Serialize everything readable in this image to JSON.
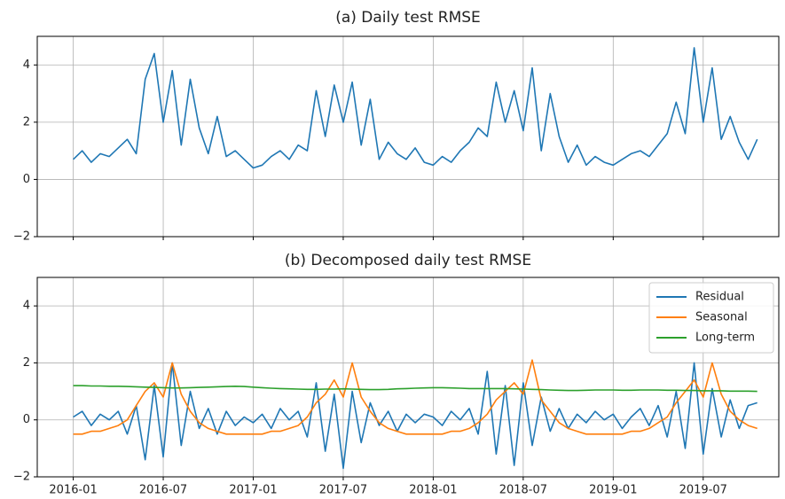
{
  "chart_data": [
    {
      "type": "line",
      "title": "(a) Daily test RMSE",
      "x": [
        2016.0,
        2016.05,
        2016.1,
        2016.15,
        2016.2,
        2016.25,
        2016.3,
        2016.35,
        2016.4,
        2016.45,
        2016.5,
        2016.55,
        2016.6,
        2016.65,
        2016.7,
        2016.75,
        2016.8,
        2016.85,
        2016.9,
        2016.95,
        2017.0,
        2017.05,
        2017.1,
        2017.15,
        2017.2,
        2017.25,
        2017.3,
        2017.35,
        2017.4,
        2017.45,
        2017.5,
        2017.55,
        2017.6,
        2017.65,
        2017.7,
        2017.75,
        2017.8,
        2017.85,
        2017.9,
        2017.95,
        2018.0,
        2018.05,
        2018.1,
        2018.15,
        2018.2,
        2018.25,
        2018.3,
        2018.35,
        2018.4,
        2018.45,
        2018.5,
        2018.55,
        2018.6,
        2018.65,
        2018.7,
        2018.75,
        2018.8,
        2018.85,
        2018.9,
        2018.95,
        2019.0,
        2019.05,
        2019.1,
        2019.15,
        2019.2,
        2019.25,
        2019.3,
        2019.35,
        2019.4,
        2019.45,
        2019.5,
        2019.55,
        2019.6,
        2019.65,
        2019.7,
        2019.75,
        2019.8
      ],
      "series": [
        {
          "color": "#1f77b4",
          "values": [
            0.7,
            1.0,
            0.6,
            0.9,
            0.8,
            1.1,
            1.4,
            0.9,
            3.5,
            4.4,
            2.0,
            3.8,
            1.2,
            3.5,
            1.8,
            0.9,
            2.2,
            0.8,
            1.0,
            0.7,
            0.4,
            0.5,
            0.8,
            1.0,
            0.7,
            1.2,
            1.0,
            3.1,
            1.5,
            3.3,
            2.0,
            3.4,
            1.2,
            2.8,
            0.7,
            1.3,
            0.9,
            0.7,
            1.1,
            0.6,
            0.5,
            0.8,
            0.6,
            1.0,
            1.3,
            1.8,
            1.5,
            3.4,
            2.0,
            3.1,
            1.7,
            3.9,
            1.0,
            3.0,
            1.5,
            0.6,
            1.2,
            0.5,
            0.8,
            0.6,
            0.5,
            0.7,
            0.9,
            1.0,
            0.8,
            1.2,
            1.6,
            2.7,
            1.6,
            4.6,
            2.0,
            3.9,
            1.4,
            2.2,
            1.3,
            0.7,
            1.4
          ]
        }
      ],
      "xlim": [
        2015.8,
        2019.92
      ],
      "ylim": [
        -2,
        5
      ],
      "yticks": [
        {
          "value": -2,
          "label": "−2"
        },
        0,
        2,
        4
      ],
      "grid": true
    },
    {
      "type": "line",
      "title": "(b) Decomposed daily test RMSE",
      "x": [
        2016.0,
        2016.05,
        2016.1,
        2016.15,
        2016.2,
        2016.25,
        2016.3,
        2016.35,
        2016.4,
        2016.45,
        2016.5,
        2016.55,
        2016.6,
        2016.65,
        2016.7,
        2016.75,
        2016.8,
        2016.85,
        2016.9,
        2016.95,
        2017.0,
        2017.05,
        2017.1,
        2017.15,
        2017.2,
        2017.25,
        2017.3,
        2017.35,
        2017.4,
        2017.45,
        2017.5,
        2017.55,
        2017.6,
        2017.65,
        2017.7,
        2017.75,
        2017.8,
        2017.85,
        2017.9,
        2017.95,
        2018.0,
        2018.05,
        2018.1,
        2018.15,
        2018.2,
        2018.25,
        2018.3,
        2018.35,
        2018.4,
        2018.45,
        2018.5,
        2018.55,
        2018.6,
        2018.65,
        2018.7,
        2018.75,
        2018.8,
        2018.85,
        2018.9,
        2018.95,
        2019.0,
        2019.05,
        2019.1,
        2019.15,
        2019.2,
        2019.25,
        2019.3,
        2019.35,
        2019.4,
        2019.45,
        2019.5,
        2019.55,
        2019.6,
        2019.65,
        2019.7,
        2019.75,
        2019.8
      ],
      "series": [
        {
          "name": "Residual",
          "color": "#1f77b4",
          "values": [
            0.1,
            0.3,
            -0.2,
            0.2,
            0.0,
            0.3,
            -0.5,
            0.5,
            -1.4,
            1.2,
            -1.3,
            2.0,
            -0.9,
            1.0,
            -0.3,
            0.4,
            -0.5,
            0.3,
            -0.2,
            0.1,
            -0.1,
            0.2,
            -0.3,
            0.4,
            0.0,
            0.3,
            -0.6,
            1.3,
            -1.1,
            0.9,
            -1.7,
            1.0,
            -0.8,
            0.6,
            -0.2,
            0.3,
            -0.4,
            0.2,
            -0.1,
            0.2,
            0.1,
            -0.2,
            0.3,
            0.0,
            0.4,
            -0.5,
            1.7,
            -1.2,
            1.2,
            -1.6,
            1.3,
            -0.9,
            0.8,
            -0.4,
            0.4,
            -0.3,
            0.2,
            -0.1,
            0.3,
            0.0,
            0.2,
            -0.3,
            0.1,
            0.4,
            -0.2,
            0.5,
            -0.6,
            1.0,
            -1.0,
            2.0,
            -1.2,
            1.1,
            -0.6,
            0.7,
            -0.3,
            0.5,
            0.6
          ]
        },
        {
          "name": "Seasonal",
          "color": "#ff7f0e",
          "values": [
            -0.5,
            -0.5,
            -0.4,
            -0.4,
            -0.3,
            -0.2,
            0.0,
            0.5,
            1.0,
            1.3,
            0.8,
            2.0,
            0.9,
            0.3,
            -0.1,
            -0.3,
            -0.4,
            -0.5,
            -0.5,
            -0.5,
            -0.5,
            -0.5,
            -0.4,
            -0.4,
            -0.3,
            -0.2,
            0.1,
            0.6,
            0.9,
            1.4,
            0.8,
            2.0,
            0.8,
            0.3,
            -0.1,
            -0.3,
            -0.4,
            -0.5,
            -0.5,
            -0.5,
            -0.5,
            -0.5,
            -0.4,
            -0.4,
            -0.3,
            -0.1,
            0.2,
            0.7,
            1.0,
            1.3,
            0.9,
            2.1,
            0.7,
            0.3,
            -0.1,
            -0.3,
            -0.4,
            -0.5,
            -0.5,
            -0.5,
            -0.5,
            -0.5,
            -0.4,
            -0.4,
            -0.3,
            -0.1,
            0.1,
            0.6,
            1.0,
            1.4,
            0.8,
            2.0,
            0.9,
            0.3,
            0.0,
            -0.2,
            -0.3
          ]
        },
        {
          "name": "Long-term",
          "color": "#2ca02c",
          "values": [
            1.2,
            1.2,
            1.19,
            1.19,
            1.18,
            1.18,
            1.17,
            1.16,
            1.15,
            1.14,
            1.13,
            1.12,
            1.12,
            1.13,
            1.14,
            1.15,
            1.16,
            1.17,
            1.18,
            1.17,
            1.15,
            1.13,
            1.11,
            1.1,
            1.09,
            1.08,
            1.07,
            1.07,
            1.08,
            1.08,
            1.09,
            1.08,
            1.07,
            1.06,
            1.06,
            1.07,
            1.09,
            1.1,
            1.11,
            1.12,
            1.13,
            1.13,
            1.12,
            1.11,
            1.1,
            1.1,
            1.1,
            1.1,
            1.1,
            1.09,
            1.08,
            1.07,
            1.06,
            1.05,
            1.04,
            1.03,
            1.03,
            1.04,
            1.05,
            1.05,
            1.05,
            1.04,
            1.04,
            1.05,
            1.05,
            1.05,
            1.04,
            1.04,
            1.03,
            1.03,
            1.02,
            1.02,
            1.02,
            1.01,
            1.01,
            1.01,
            1.0
          ]
        }
      ],
      "xlim": [
        2015.8,
        2019.92
      ],
      "ylim": [
        -2,
        5
      ],
      "xticks": [
        {
          "value": 2016.0,
          "label": "2016-01"
        },
        {
          "value": 2016.5,
          "label": "2016-07"
        },
        {
          "value": 2017.0,
          "label": "2017-01"
        },
        {
          "value": 2017.5,
          "label": "2017-07"
        },
        {
          "value": 2018.0,
          "label": "2018-01"
        },
        {
          "value": 2018.5,
          "label": "2018-07"
        },
        {
          "value": 2019.0,
          "label": "2019-01"
        },
        {
          "value": 2019.5,
          "label": "2019-07"
        }
      ],
      "yticks": [
        {
          "value": -2,
          "label": "−2"
        },
        0,
        2,
        4
      ],
      "grid": true,
      "legend": "upper right"
    }
  ]
}
